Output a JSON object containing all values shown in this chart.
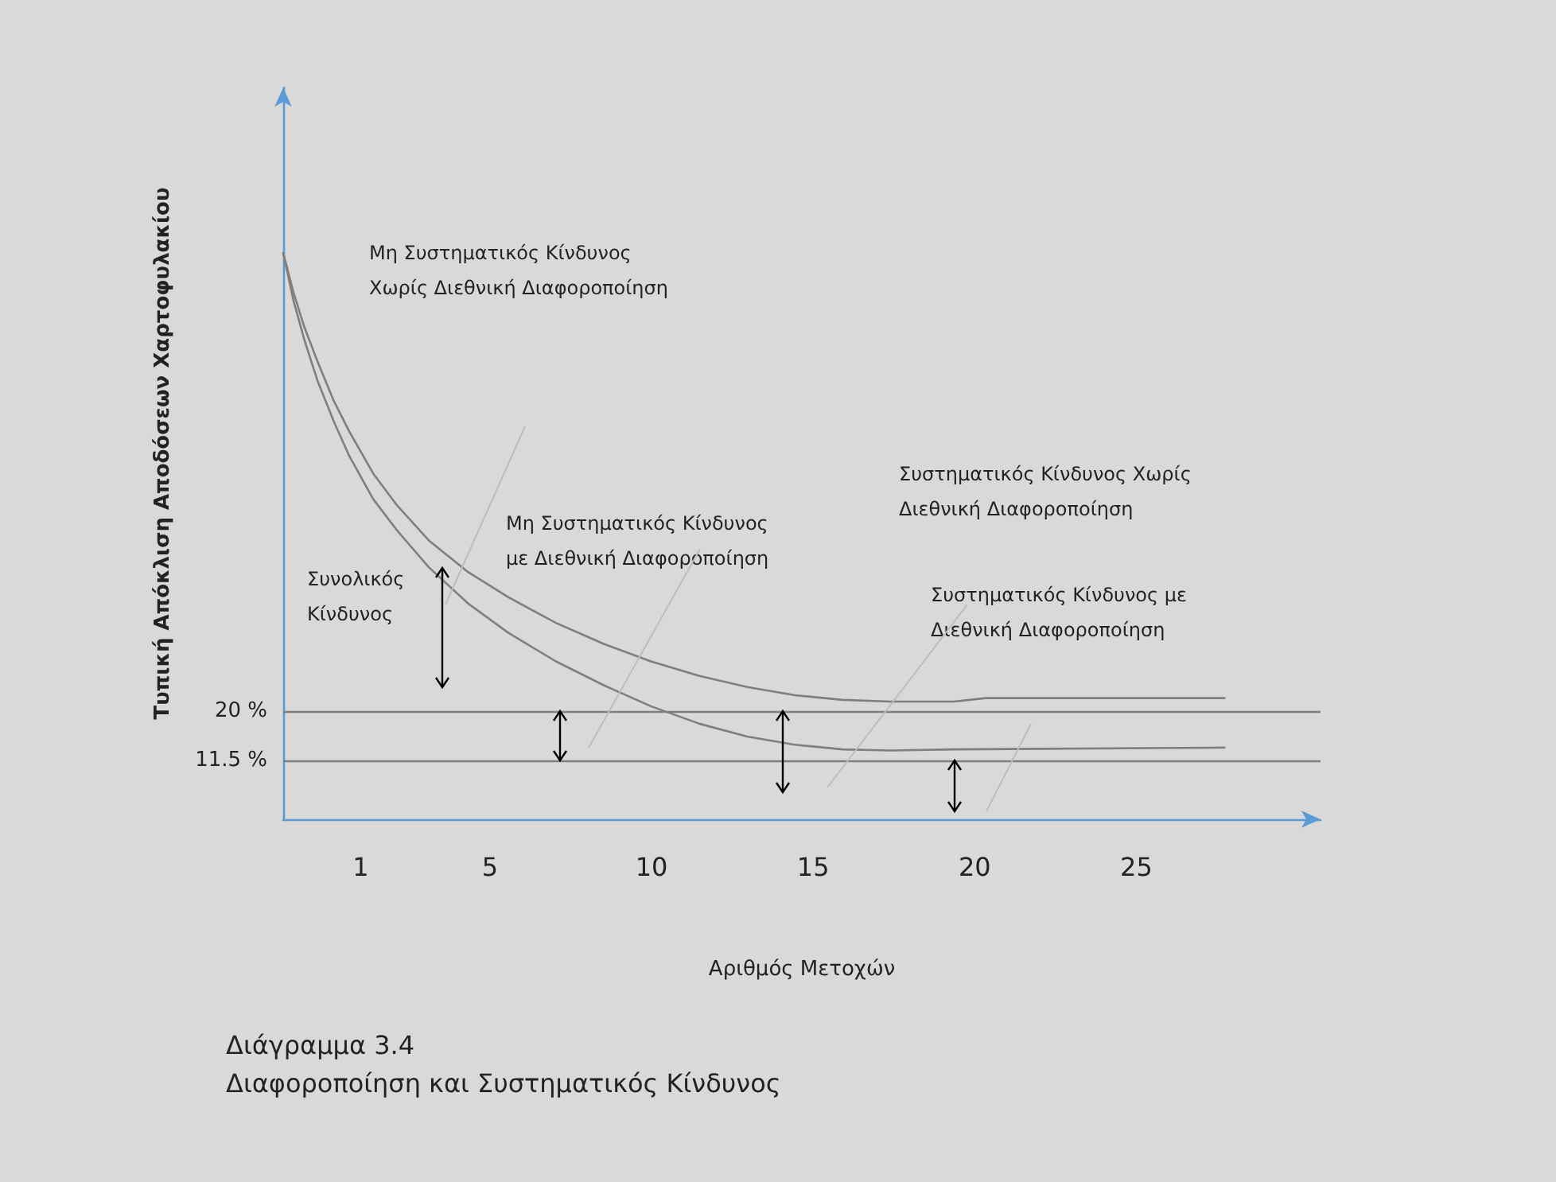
{
  "chart_data": {
    "type": "line",
    "title": "Διάγραμμα 3.4",
    "subtitle": "Διαφοροποίηση και Συστηματικός Κίνδυνος",
    "xlabel": "Αριθμός Μετοχών",
    "ylabel": "Τυπική Απόκλιση Αποδόσεων Χαρτοφυλακίου",
    "xlim": [
      -1.4,
      30.7
    ],
    "xticks": [
      1,
      5,
      10,
      15,
      20,
      25
    ],
    "ylim": [
      1.4,
      127
    ],
    "yticks": [
      {
        "value": 11.5,
        "label": "11.5 %"
      },
      {
        "value": 20,
        "label": "20 %"
      }
    ],
    "grid": false,
    "marker": "none",
    "line_style": "solid",
    "series": [
      {
        "color": "#7f7f7f",
        "x": [
          -1.4,
          -1.08,
          -0.74,
          -0.34,
          0.15,
          0.64,
          1.38,
          2.12,
          3.1,
          4.33,
          5.57,
          7.04,
          8.52,
          9.98,
          11.48,
          12.96,
          14.43,
          15.91,
          17.39,
          19.36,
          20.34,
          27.73
        ],
        "values": [
          98.6,
          91.8,
          85.8,
          80,
          73.4,
          68,
          60.8,
          55.3,
          49.3,
          43.8,
          39.5,
          35.1,
          31.5,
          28.5,
          26,
          24.1,
          22.7,
          21.9,
          21.6,
          21.6,
          22.2,
          22.2
        ]
      },
      {
        "color": "#7f7f7f",
        "x": [
          -1.4,
          -1.08,
          -0.74,
          -0.34,
          0.15,
          0.64,
          1.38,
          2.12,
          3.1,
          4.33,
          5.57,
          7.04,
          8.52,
          9.98,
          11.48,
          12.96,
          14.43,
          15.91,
          17.39,
          19.36,
          27.73
        ],
        "values": [
          98.6,
          90.4,
          83.6,
          76.7,
          69.9,
          63.8,
          56.4,
          51,
          44.7,
          38.4,
          33.4,
          28.5,
          24.4,
          20.8,
          17.8,
          15.6,
          14.2,
          13.4,
          13.2,
          13.4,
          13.7
        ]
      }
    ],
    "ref_lines": [
      {
        "axis": "y",
        "value": 20,
        "color": "#7f7f7f"
      },
      {
        "axis": "y",
        "value": 11.5,
        "color": "#7f7f7f"
      }
    ],
    "annotations": [
      "Μη Συστηματικός Κίνδυνος Χωρίς Διεθνική Διαφοροποίηση",
      "Μη Συστηματικός Κίνδυνος με Διεθνική Διαφοροποίηση",
      "Συστηματικός Κίνδυνος Χωρίς Διεθνική Διαφοροποίηση",
      "Συστηματικός Κίνδυνος με Διεθνική Διαφοροποίηση",
      "Συνολικός Κίνδυνος"
    ]
  }
}
